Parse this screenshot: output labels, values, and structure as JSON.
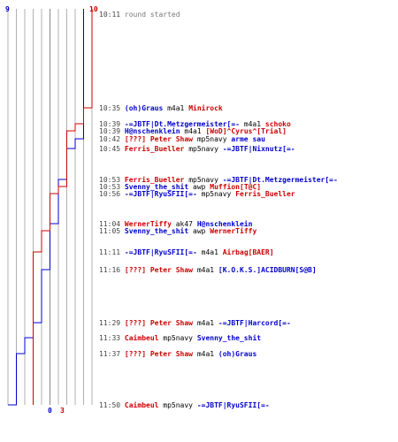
{
  "colors": {
    "blue": "#0000cc",
    "red": "#cc0000",
    "grid": "#b0b0b0",
    "mid": "#888888",
    "time": "#444444",
    "weapon": "#000000"
  },
  "graph": {
    "top_left_label": "9",
    "top_right_label": "10",
    "bottom_blue_label": "0",
    "bottom_red_label": "3"
  },
  "events": [
    {
      "time": "10:11",
      "message": "round started"
    },
    {
      "time": "10:35",
      "killer": "(oh)Graus",
      "killer_team": "blue",
      "weapon": "m4a1",
      "victim": "Minirock",
      "victim_team": "red"
    },
    {
      "time": "10:39",
      "killer": "-=JBTF|Dt.Metzgermeister[=-",
      "killer_team": "blue",
      "weapon": "m4a1",
      "victim": "schoko",
      "victim_team": "red"
    },
    {
      "time": "10:39",
      "killer": "H@nschenklein",
      "killer_team": "blue",
      "weapon": "m4a1",
      "victim": "[WoD]^Cyrus^[Trial]",
      "victim_team": "red"
    },
    {
      "time": "10:42",
      "killer": "[???] Peter Shaw",
      "killer_team": "red",
      "weapon": "mp5navy",
      "victim": "arme sau",
      "victim_team": "blue"
    },
    {
      "time": "10:45",
      "killer": "Ferris_Bueller",
      "killer_team": "red",
      "weapon": "mp5navy",
      "victim": "-=JBTF|Nixnutz[=-",
      "victim_team": "blue"
    },
    {
      "time": "10:53",
      "killer": "Ferris_Bueller",
      "killer_team": "red",
      "weapon": "mp5navy",
      "victim": "-=JBTF|Dt.Metzgermeister[=-",
      "victim_team": "blue"
    },
    {
      "time": "10:53",
      "killer": "Svenny_the_shit",
      "killer_team": "blue",
      "weapon": "awp",
      "victim": "Muffion[T@C]",
      "victim_team": "red"
    },
    {
      "time": "10:56",
      "killer": "-=JBTF|RyuSFII[=-",
      "killer_team": "blue",
      "weapon": "mp5navy",
      "victim": "Ferris_Bueller",
      "victim_team": "red"
    },
    {
      "time": "11:04",
      "killer": "WernerTiffy",
      "killer_team": "red",
      "weapon": "ak47",
      "victim": "H@nschenklein",
      "victim_team": "blue"
    },
    {
      "time": "11:05",
      "killer": "Svenny_the_shit",
      "killer_team": "blue",
      "weapon": "awp",
      "victim": "WernerTiffy",
      "victim_team": "red"
    },
    {
      "time": "11:11",
      "killer": "-=JBTF|RyuSFII[=-",
      "killer_team": "blue",
      "weapon": "m4a1",
      "victim": "Airbag[BAER]",
      "victim_team": "red"
    },
    {
      "time": "11:16",
      "killer": "[???] Peter Shaw",
      "killer_team": "red",
      "weapon": "m4a1",
      "victim": "[K.O.K.S.]ACIDBURN[S@B]",
      "victim_team": "blue"
    },
    {
      "time": "11:29",
      "killer": "[???] Peter Shaw",
      "killer_team": "red",
      "weapon": "m4a1",
      "victim": "-=JBTF|Harcord[=-",
      "victim_team": "blue"
    },
    {
      "time": "11:33",
      "killer": "Caimbeul",
      "killer_team": "red",
      "weapon": "mp5navy",
      "victim": "Svenny_the_shit",
      "victim_team": "blue"
    },
    {
      "time": "11:37",
      "killer": "[???] Peter Shaw",
      "killer_team": "red",
      "weapon": "m4a1",
      "victim": "(oh)Graus",
      "victim_team": "blue"
    },
    {
      "time": "11:50",
      "killer": "Caimbeul",
      "killer_team": "red",
      "weapon": "mp5navy",
      "victim": "-=JBTF|RyuSFII[=-",
      "victim_team": "blue"
    }
  ]
}
